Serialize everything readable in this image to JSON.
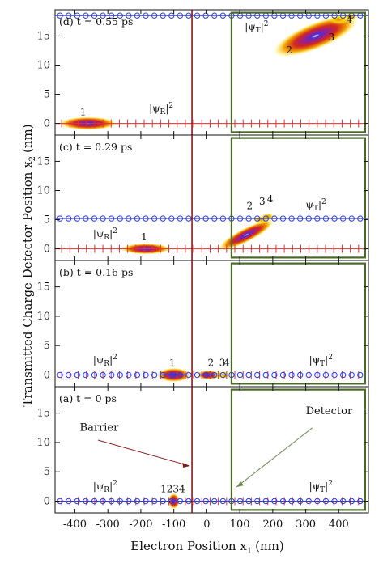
{
  "chart_data": {
    "type": "heatmap",
    "xlabel": "Electron Position x",
    "xlabel_sub": "1",
    "xlabel_unit": "(nm)",
    "ylabel": "Transmitted Charge Detector Position x",
    "ylabel_sub": "2",
    "ylabel_unit": "(nm)",
    "x_ticks": [
      "-400",
      "-300",
      "-200",
      "-100",
      "0",
      "100",
      "200",
      "300",
      "400"
    ],
    "y_ticks": [
      "0",
      "5",
      "10",
      "15"
    ],
    "xlim": [
      -460,
      490
    ],
    "ylim": [
      -2,
      19.5
    ],
    "barrier_x": -45,
    "detector_box": {
      "x": [
        75,
        480
      ],
      "y": [
        -1.5,
        19.0
      ]
    },
    "annotations": {
      "barrier": "Barrier",
      "detector": "Detector"
    },
    "panels": [
      {
        "label": "(d) t = 0.55 ps",
        "blue_line_y": 18.5,
        "red_line_y": 0,
        "labels": [
          {
            "text": "|ψ",
            "sub": "T",
            "sup": "2",
            "x": 115,
            "y": 16.0
          },
          {
            "text": "|ψ",
            "sub": "R",
            "sup": "2",
            "x": -175,
            "y": 2.0
          }
        ],
        "packets": [
          {
            "name": "1",
            "x": -360,
            "y": 0,
            "sx": 70,
            "sy": 0.85,
            "angle": 0,
            "label_x": -375,
            "label_y": 1.4
          },
          {
            "name": "2",
            "x": 330,
            "y": 15.0,
            "sx": 110,
            "sy": 1.7,
            "angle": -22,
            "label_x": 250,
            "label_y": 12.0
          },
          {
            "name": "3",
            "x": 400,
            "y": 17.8,
            "sx": 25,
            "sy": 0.6,
            "angle": 0,
            "label_x": 378,
            "label_y": 14.2
          },
          {
            "name": "4",
            "x": 435,
            "y": 18.3,
            "sx": 20,
            "sy": 0.5,
            "angle": 0,
            "label_x": 432,
            "label_y": 17.2
          }
        ]
      },
      {
        "label": "(c) t = 0.29 ps",
        "blue_line_y": 5.2,
        "red_line_y": 0,
        "labels": [
          {
            "text": "|ψ",
            "sub": "T",
            "sup": "2",
            "x": 290,
            "y": 7.0
          },
          {
            "text": "|ψ",
            "sub": "R",
            "sup": "2",
            "x": -345,
            "y": 2.0
          }
        ],
        "packets": [
          {
            "name": "1",
            "x": -185,
            "y": 0,
            "sx": 60,
            "sy": 0.7,
            "angle": 0,
            "label_x": -190,
            "label_y": 1.5
          },
          {
            "name": "2",
            "x": 120,
            "y": 2.4,
            "sx": 75,
            "sy": 0.9,
            "angle": -27,
            "label_x": 130,
            "label_y": 6.8
          },
          {
            "name": "3",
            "x": 165,
            "y": 5.0,
            "sx": 22,
            "sy": 0.5,
            "angle": 0,
            "label_x": 168,
            "label_y": 7.6
          },
          {
            "name": "4",
            "x": 185,
            "y": 5.5,
            "sx": 18,
            "sy": 0.5,
            "angle": 0,
            "label_x": 192,
            "label_y": 8.0
          }
        ]
      },
      {
        "label": "(b) t = 0.16 ps",
        "blue_line_y": 0,
        "red_line_y": 0,
        "labels": [
          {
            "text": "|ψ",
            "sub": "T",
            "sup": "2",
            "x": 310,
            "y": 2.0
          },
          {
            "text": "|ψ",
            "sub": "R",
            "sup": "2",
            "x": -345,
            "y": 2.0
          }
        ],
        "packets": [
          {
            "name": "1",
            "x": -100,
            "y": 0,
            "sx": 42,
            "sy": 0.9,
            "angle": 0,
            "label_x": -105,
            "label_y": 1.5
          },
          {
            "name": "2",
            "x": 5,
            "y": 0,
            "sx": 28,
            "sy": 0.6,
            "angle": 0,
            "label_x": 12,
            "label_y": 1.5
          },
          {
            "name": "3",
            "x": 40,
            "y": 0,
            "sx": 15,
            "sy": 0.5,
            "angle": 0,
            "label_x": 47,
            "label_y": 1.5
          },
          {
            "name": "4",
            "x": 55,
            "y": 0,
            "sx": 12,
            "sy": 0.5,
            "angle": 0,
            "label_x": 60,
            "label_y": 1.5
          }
        ]
      },
      {
        "label": "(a) t = 0 ps",
        "blue_line_y": 0,
        "red_line_y": 0,
        "labels": [
          {
            "text": "|ψ",
            "sub": "T",
            "sup": "2",
            "x": 310,
            "y": 2.0
          },
          {
            "text": "|ψ",
            "sub": "R",
            "sup": "2",
            "x": -345,
            "y": 2.0
          }
        ],
        "packets": [
          {
            "name": "1234",
            "x": -100,
            "y": 0,
            "sx": 14,
            "sy": 1.0,
            "angle": 0,
            "label_x": -103,
            "label_y": 1.5
          }
        ]
      }
    ]
  }
}
